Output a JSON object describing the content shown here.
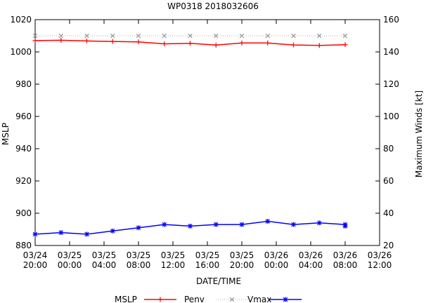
{
  "chart_data": {
    "type": "line",
    "title": "WP0318 2018032606",
    "xlabel": "DATE/TIME",
    "ylabel": "MSLP",
    "y2label": "Maximum Winds [kt]",
    "x_ticks": [
      [
        "03/24",
        "20:00"
      ],
      [
        "03/25",
        "00:00"
      ],
      [
        "03/25",
        "04:00"
      ],
      [
        "03/25",
        "08:00"
      ],
      [
        "03/25",
        "12:00"
      ],
      [
        "03/25",
        "16:00"
      ],
      [
        "03/25",
        "20:00"
      ],
      [
        "03/26",
        "00:00"
      ],
      [
        "03/26",
        "04:00"
      ],
      [
        "03/26",
        "08:00"
      ],
      [
        "03/26",
        "12:00"
      ]
    ],
    "xlim": [
      0,
      40
    ],
    "ylim": [
      880,
      1020
    ],
    "y_ticks": [
      880,
      900,
      920,
      940,
      960,
      980,
      1000,
      1020
    ],
    "y2lim": [
      20,
      160
    ],
    "y2_ticks": [
      20,
      40,
      60,
      80,
      100,
      120,
      140,
      160
    ],
    "x_hours": [
      0,
      3,
      6,
      9,
      12,
      15,
      18,
      21,
      24,
      27,
      30,
      33,
      36
    ],
    "legend_title": "MSLP",
    "legend_position": "bottom",
    "series": [
      {
        "name": "Penv",
        "axis": "left",
        "color": "#ff0000",
        "marker": "plus",
        "line": "solid",
        "values": [
          1007,
          1007.2,
          1006.8,
          1006.5,
          1006.2,
          1005,
          1005.3,
          1004.2,
          1005.5,
          1005.5,
          1004.3,
          1004,
          1004.5
        ]
      },
      {
        "name": "Vmax",
        "axis": "right",
        "color": "#999999",
        "marker": "x",
        "line": "dotted",
        "values": [
          150,
          150,
          150,
          150,
          150,
          150,
          150,
          150,
          150,
          150,
          150,
          150,
          150
        ]
      },
      {
        "name": "",
        "axis": "left",
        "color": "#0000ff",
        "marker": "star",
        "line": "solid",
        "values": [
          887,
          888,
          887,
          889,
          891,
          893,
          892,
          893,
          893,
          895,
          893,
          894,
          893
        ],
        "extra_points": [
          [
            36,
            892
          ]
        ]
      }
    ]
  }
}
